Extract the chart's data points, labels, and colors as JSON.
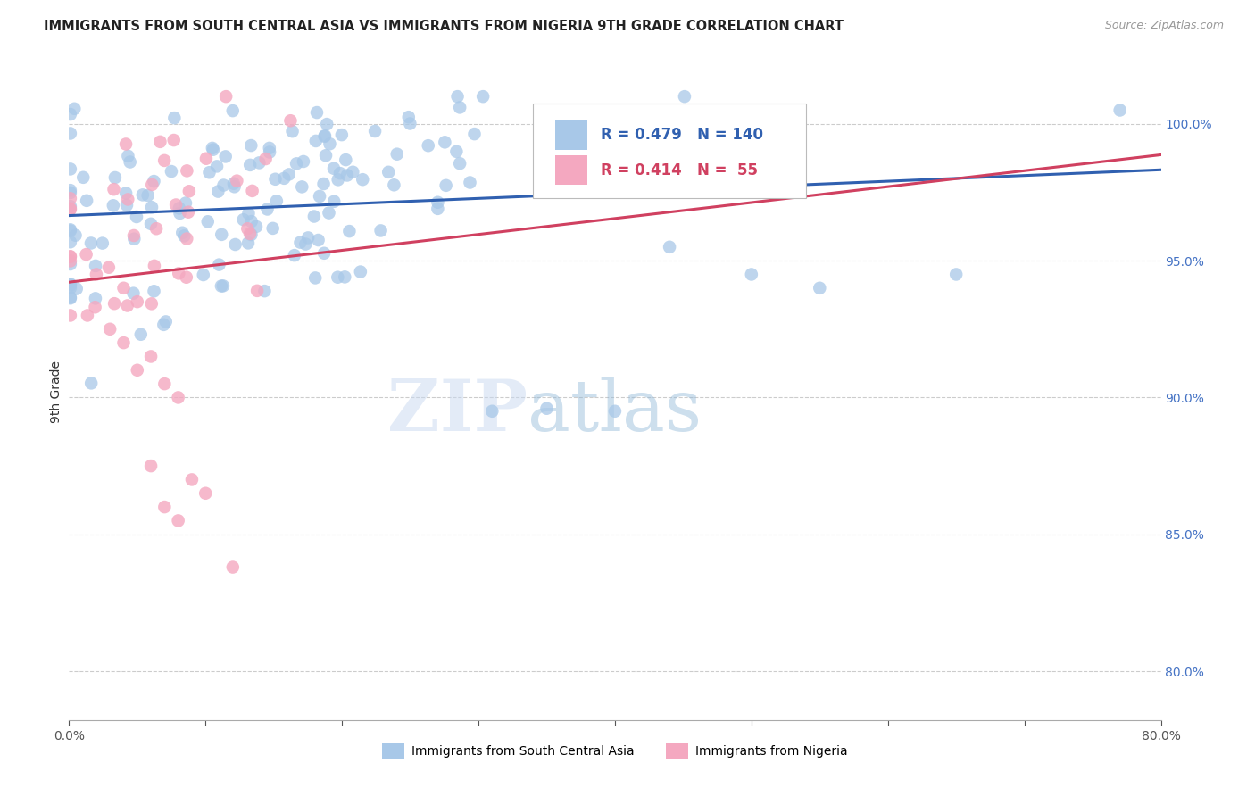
{
  "title": "IMMIGRANTS FROM SOUTH CENTRAL ASIA VS IMMIGRANTS FROM NIGERIA 9TH GRADE CORRELATION CHART",
  "source": "Source: ZipAtlas.com",
  "ylabel": "9th Grade",
  "ytick_labels": [
    "100.0%",
    "95.0%",
    "90.0%",
    "85.0%",
    "80.0%"
  ],
  "ytick_values": [
    1.0,
    0.95,
    0.9,
    0.85,
    0.8
  ],
  "xlim": [
    0.0,
    0.8
  ],
  "ylim": [
    0.782,
    1.022
  ],
  "blue_color": "#a8c8e8",
  "pink_color": "#f4a8c0",
  "blue_line_color": "#3060b0",
  "pink_line_color": "#d04060",
  "legend_blue_text_color": "#3060b0",
  "legend_pink_text_color": "#d04060",
  "watermark_zip": "ZIP",
  "watermark_atlas": "atlas",
  "R_blue": 0.479,
  "N_blue": 140,
  "R_pink": 0.414,
  "N_pink": 55,
  "grid_color": "#cccccc",
  "background_color": "#ffffff",
  "legend_box_color": "#eeeeee"
}
